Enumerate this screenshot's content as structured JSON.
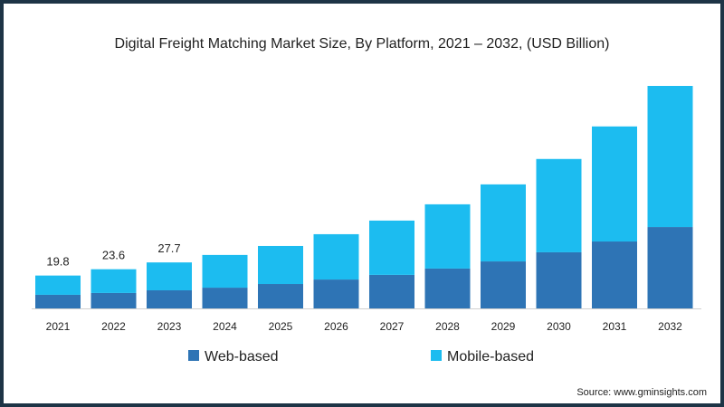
{
  "chart_data": {
    "type": "bar",
    "stacked": true,
    "title": "Digital Freight Matching Market Size, By Platform, 2021 – 2032, (USD Billion)",
    "xlabel": "",
    "ylabel": "",
    "ylim": [
      0,
      140
    ],
    "grid": false,
    "legend_position": "bottom",
    "categories": [
      "2021",
      "2022",
      "2023",
      "2024",
      "2025",
      "2026",
      "2027",
      "2028",
      "2029",
      "2030",
      "2031",
      "2032"
    ],
    "series": [
      {
        "name": "Web-based",
        "color": "#2e74b5",
        "values": [
          8.2,
          9.3,
          10.9,
          12.5,
          14.7,
          17.4,
          20.2,
          24.0,
          28.3,
          33.8,
          40.3,
          49.0
        ]
      },
      {
        "name": "Mobile-based",
        "color": "#1cbcf0",
        "values": [
          11.6,
          14.3,
          16.8,
          19.7,
          22.9,
          27.3,
          32.7,
          38.7,
          46.4,
          56.2,
          69.3,
          85.0
        ]
      }
    ],
    "data_labels": [
      {
        "category": "2021",
        "text": "19.8"
      },
      {
        "category": "2022",
        "text": "23.6"
      },
      {
        "category": "2023",
        "text": "27.7"
      }
    ],
    "source": "Source: www.gminsights.com"
  }
}
